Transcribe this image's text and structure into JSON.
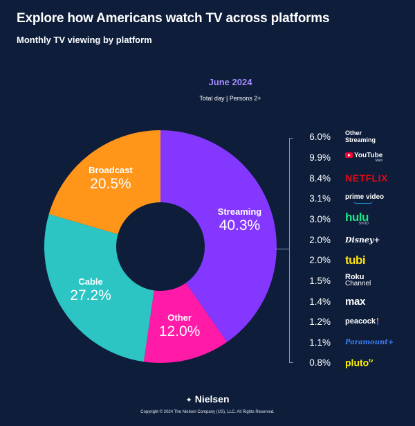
{
  "header": {
    "title": "Explore how Americans watch TV across platforms",
    "subtitle": "Monthly TV viewing by platform"
  },
  "period": "June 2024",
  "scope": "Total day | Persons 2+",
  "chart_data": {
    "type": "pie",
    "variant": "donut",
    "title": "Monthly TV viewing by platform",
    "period": "June 2024",
    "units": "percent",
    "slices": [
      {
        "name": "Streaming",
        "value": 40.3,
        "label": "40.3%",
        "color": "#8438ff"
      },
      {
        "name": "Other",
        "value": 12.0,
        "label": "12.0%",
        "color": "#ff1aa8"
      },
      {
        "name": "Cable",
        "value": 27.2,
        "label": "27.2%",
        "color": "#2cc5c3"
      },
      {
        "name": "Broadcast",
        "value": 20.5,
        "label": "20.5%",
        "color": "#ff9519"
      }
    ],
    "streaming_breakdown": [
      {
        "name": "Other Streaming",
        "value": 6.0,
        "label": "6.0%"
      },
      {
        "name": "YouTube",
        "value": 9.9,
        "label": "9.9%"
      },
      {
        "name": "NETFLIX",
        "value": 8.4,
        "label": "8.4%"
      },
      {
        "name": "prime video",
        "value": 3.1,
        "label": "3.1%"
      },
      {
        "name": "hulu",
        "value": 3.0,
        "label": "3.0%"
      },
      {
        "name": "Disney+",
        "value": 2.0,
        "label": "2.0%"
      },
      {
        "name": "tubi",
        "value": 2.0,
        "label": "2.0%"
      },
      {
        "name": "Roku Channel",
        "value": 1.5,
        "label": "1.5%"
      },
      {
        "name": "max",
        "value": 1.4,
        "label": "1.4%"
      },
      {
        "name": "peacock",
        "value": 1.2,
        "label": "1.2%"
      },
      {
        "name": "Paramount+",
        "value": 1.1,
        "label": "1.1%"
      },
      {
        "name": "pluto tv",
        "value": 0.8,
        "label": "0.8%"
      }
    ]
  },
  "logos": {
    "youtube_word": "YouTube",
    "youtube_sub": "Main",
    "netflix": "NETFLIX",
    "prime": "prime video",
    "hulu": "hulu",
    "hulu_sub": "SVOD",
    "disney": "Disney+",
    "tubi": "tubi",
    "roku": "Roku",
    "roku_sub": "Channel",
    "max": "max",
    "peacock": "peacock",
    "paramount": "Paramount+",
    "pluto": "pluto",
    "pluto_tv": "tv",
    "other_streaming": "Other Streaming"
  },
  "footer": {
    "brand": "Nielsen",
    "copyright": "Copyright © 2024 The Nielsen Company (US), LLC. All Rights Reserved."
  }
}
